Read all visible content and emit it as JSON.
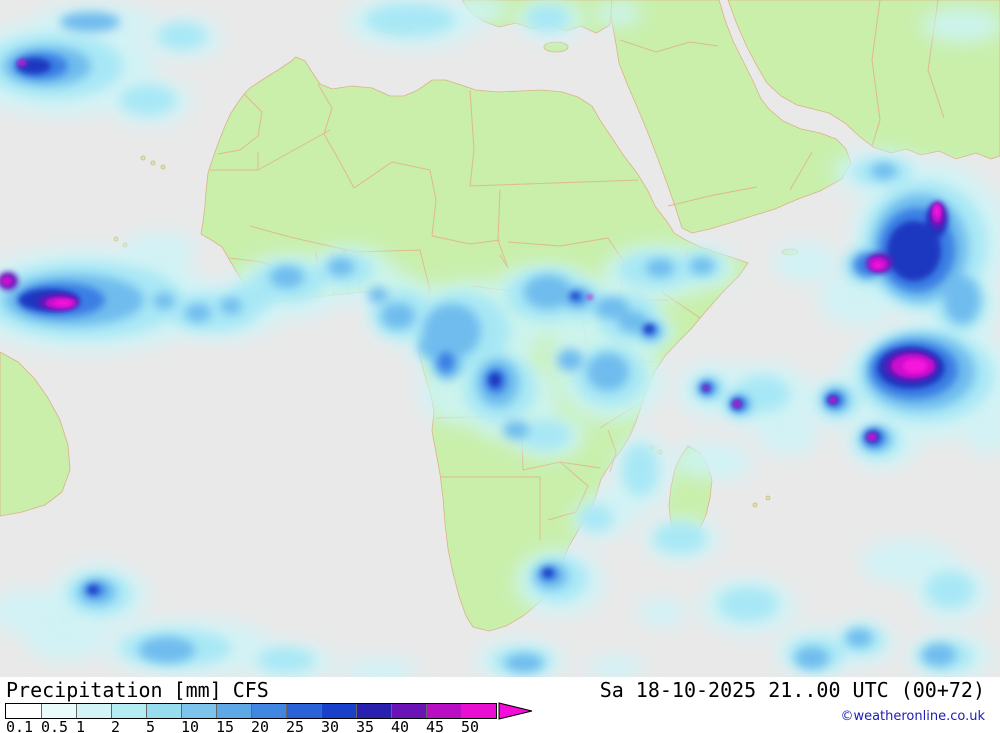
{
  "footer": {
    "parameter": "Precipitation",
    "unit": "[mm]",
    "model": "CFS",
    "datetime": "Sa 18-10-2025 21..00 UTC (00+72)",
    "copyright": "©weatheronline.co.uk"
  },
  "legend": {
    "values": [
      "0.1",
      "0.5",
      "1",
      "2",
      "5",
      "10",
      "15",
      "20",
      "25",
      "30",
      "35",
      "40",
      "45",
      "50"
    ],
    "segment_colors": [
      "#ffffff",
      "#eafbfb",
      "#d2f4f6",
      "#b5ecf4",
      "#98dcf0",
      "#7cc4ec",
      "#5fa8e6",
      "#4186e0",
      "#2a63d8",
      "#1840c8",
      "#2a20b0",
      "#6a14b8",
      "#b80fc4",
      "#ea0dd2"
    ],
    "overflow_arrow_color": "#f60cd8"
  },
  "map": {
    "region": "Africa",
    "ocean_color": "#e9e9e9",
    "land_color": "#c9efab",
    "border_color": "#e2b28a",
    "precip_intensity_colors": {
      "trace": "#cdf4f8",
      "light": "#a6e7f5",
      "moderate": "#6fbcee",
      "heavy": "#3a7ee4",
      "very_heavy": "#1a38c0",
      "intense": "#5d13b8",
      "extreme": "#cf10cf",
      "max": "#f716dc"
    }
  }
}
